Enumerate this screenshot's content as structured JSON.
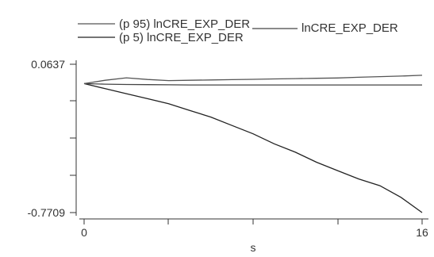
{
  "chart_data": {
    "type": "line",
    "xlabel": "s",
    "ylabel": "",
    "xlim": [
      0,
      16
    ],
    "ylim": [
      -0.7709,
      0.0637
    ],
    "x_ticks": [
      "0",
      "16"
    ],
    "y_ticks": [
      "0.0637",
      "-0.7709"
    ],
    "grid": false,
    "legend": "top",
    "series": [
      {
        "name": "(p 5) lnCRE_EXP_DER",
        "color": "#222222",
        "x": [
          0,
          1,
          2,
          3,
          4,
          5,
          6,
          7,
          8,
          9,
          10,
          11,
          12,
          13,
          14,
          15,
          16
        ],
        "y": [
          0.0,
          -0.03,
          -0.06,
          -0.09,
          -0.12,
          -0.16,
          -0.2,
          -0.25,
          -0.3,
          -0.36,
          -0.41,
          -0.47,
          -0.52,
          -0.57,
          -0.61,
          -0.68,
          -0.7709
        ]
      },
      {
        "name": "lnCRE_EXP_DER",
        "color": "#444444",
        "x": [
          0,
          1,
          2,
          3,
          4,
          5,
          6,
          7,
          8,
          9,
          10,
          11,
          12,
          13,
          14,
          15,
          16
        ],
        "y": [
          0.0,
          -0.003,
          -0.005,
          -0.006,
          -0.007,
          -0.008,
          -0.008,
          -0.008,
          -0.008,
          -0.008,
          -0.008,
          -0.008,
          -0.008,
          -0.008,
          -0.008,
          -0.008,
          -0.008
        ]
      },
      {
        "name": "(p 95) lnCRE_EXP_DER",
        "color": "#555555",
        "x": [
          0,
          1,
          2,
          3,
          4,
          5,
          6,
          7,
          8,
          9,
          10,
          11,
          12,
          13,
          14,
          15,
          16
        ],
        "y": [
          0.0,
          0.02,
          0.035,
          0.025,
          0.018,
          0.02,
          0.022,
          0.024,
          0.026,
          0.028,
          0.03,
          0.032,
          0.034,
          0.038,
          0.042,
          0.045,
          0.05
        ]
      }
    ]
  }
}
